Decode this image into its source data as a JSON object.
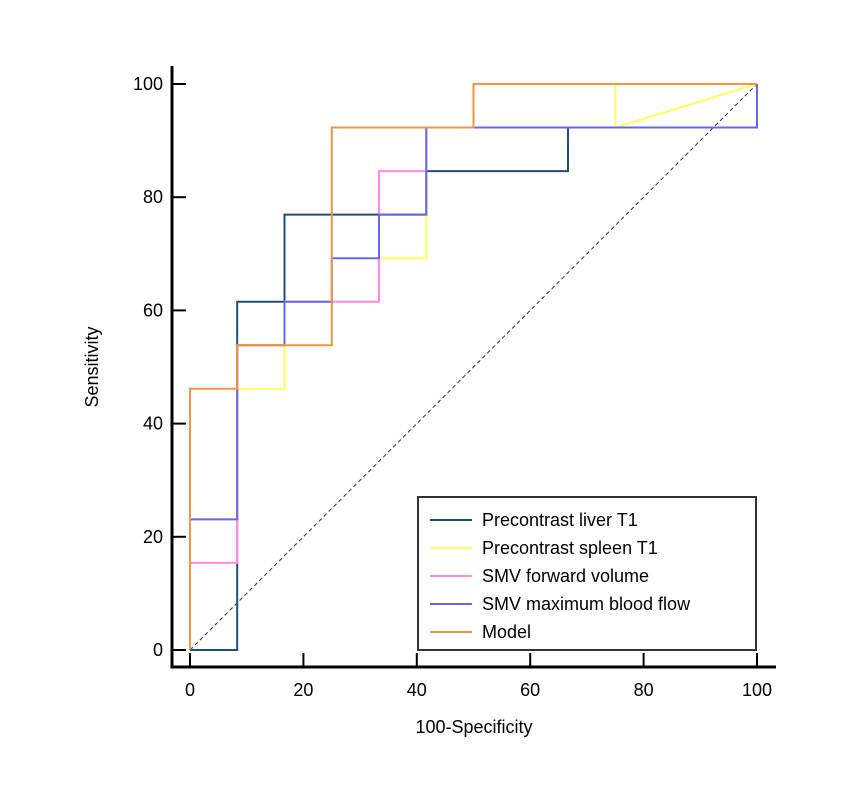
{
  "chart_data": {
    "type": "line",
    "title": "",
    "xlabel": "100-Specificity",
    "ylabel": "Sensitivity",
    "xlim": [
      0,
      100
    ],
    "ylim": [
      0,
      100
    ],
    "xticks": [
      "0",
      "20",
      "40",
      "60",
      "80",
      "100"
    ],
    "yticks": [
      "0",
      "20",
      "40",
      "60",
      "80",
      "100"
    ],
    "legend_position": "bottom-right",
    "reference_line": {
      "x": [
        0,
        100
      ],
      "y": [
        0,
        100
      ],
      "style": "dashed"
    },
    "series": [
      {
        "name": "Precontrast liver T1",
        "color": "#1f4e79",
        "x": [
          0,
          8.33,
          8.33,
          16.67,
          16.67,
          41.67,
          41.67,
          66.67,
          66.67,
          100,
          100
        ],
        "y": [
          0,
          0,
          61.54,
          61.54,
          76.92,
          76.92,
          84.62,
          84.62,
          92.31,
          92.31,
          100
        ]
      },
      {
        "name": "Precontrast spleen T1",
        "color": "#ffff55",
        "x": [
          0,
          0,
          8.33,
          8.33,
          16.67,
          16.67,
          33.33,
          33.33,
          41.67,
          41.67,
          50,
          50,
          75,
          75,
          100
        ],
        "y": [
          0,
          15.38,
          15.38,
          46.15,
          46.15,
          61.54,
          61.54,
          69.23,
          69.23,
          92.31,
          92.31,
          100,
          100,
          92.31,
          100
        ]
      },
      {
        "name": "SMV forward volume",
        "color": "#ff88ee",
        "x": [
          0,
          0,
          8.33,
          8.33,
          16.67,
          16.67,
          33.33,
          33.33,
          41.67,
          41.67,
          100,
          100
        ],
        "y": [
          0,
          15.38,
          15.38,
          53.85,
          53.85,
          61.54,
          61.54,
          84.62,
          84.62,
          92.31,
          92.31,
          100
        ]
      },
      {
        "name": "SMV maximum blood flow",
        "color": "#6666ee",
        "x": [
          0,
          0,
          8.33,
          8.33,
          16.67,
          16.67,
          25,
          25,
          33.33,
          33.33,
          41.67,
          41.67,
          100,
          100
        ],
        "y": [
          0,
          23.08,
          23.08,
          53.85,
          53.85,
          61.54,
          61.54,
          69.23,
          69.23,
          76.92,
          76.92,
          92.31,
          92.31,
          100
        ]
      },
      {
        "name": "Model",
        "color": "#f0963c",
        "x": [
          0,
          0,
          8.33,
          8.33,
          25,
          25,
          50,
          50,
          100
        ],
        "y": [
          0,
          46.15,
          46.15,
          53.85,
          53.85,
          92.31,
          92.31,
          100,
          100
        ]
      }
    ]
  }
}
